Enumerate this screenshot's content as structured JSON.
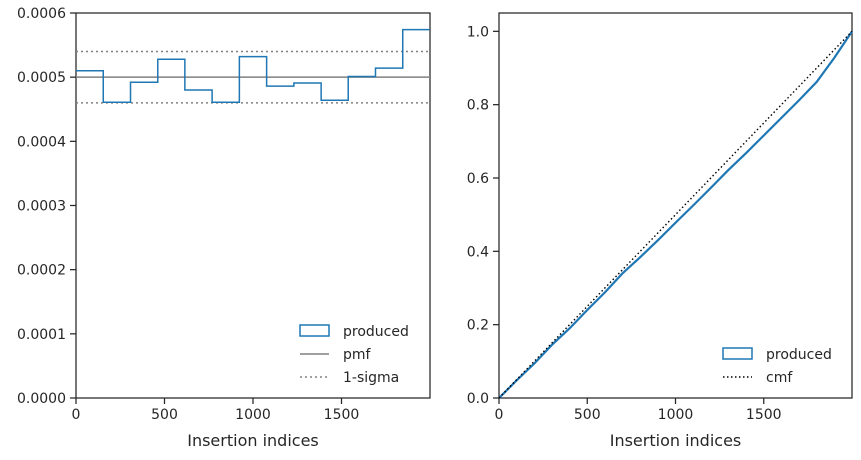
{
  "chart_data": [
    {
      "type": "line",
      "xlabel": "Insertion indices",
      "ylabel": "",
      "xlim": [
        0,
        2000
      ],
      "ylim": [
        0,
        0.0006
      ],
      "xticks": [
        0,
        500,
        1000,
        1500
      ],
      "xtick_labels": [
        "0",
        "500",
        "1000",
        "1500"
      ],
      "yticks": [
        0,
        0.0001,
        0.0002,
        0.0003,
        0.0004,
        0.0005,
        0.0006
      ],
      "ytick_labels": [
        "0.0000",
        "0.0001",
        "0.0002",
        "0.0003",
        "0.0004",
        "0.0005",
        "0.0006"
      ],
      "legend_position": "lower-right",
      "grid": false,
      "histogram": {
        "name": "produced",
        "color": "#1f77b4",
        "bin_edges": [
          0,
          154,
          308,
          462,
          615,
          769,
          923,
          1077,
          1231,
          1385,
          1538,
          1692,
          1846,
          2000
        ],
        "values": [
          0.00051,
          0.000461,
          0.000492,
          0.000528,
          0.00048,
          0.000461,
          0.000532,
          0.000486,
          0.000491,
          0.000464,
          0.000501,
          0.000514,
          0.000574
        ]
      },
      "pmf": {
        "name": "pmf",
        "color": "#808080",
        "value": 0.0005
      },
      "sigma": {
        "name": "1-sigma",
        "color": "#808080",
        "values": [
          0.00046,
          0.00054
        ]
      }
    },
    {
      "type": "line",
      "xlabel": "Insertion indices",
      "ylabel": "",
      "xlim": [
        0,
        2000
      ],
      "ylim": [
        0,
        1.05
      ],
      "xticks": [
        0,
        500,
        1000,
        1500
      ],
      "xtick_labels": [
        "0",
        "500",
        "1000",
        "1500"
      ],
      "yticks": [
        0,
        0.2,
        0.4,
        0.6,
        0.8,
        1.0
      ],
      "ytick_labels": [
        "0.0",
        "0.2",
        "0.4",
        "0.6",
        "0.8",
        "1.0"
      ],
      "legend_position": "lower-right",
      "grid": false,
      "produced": {
        "name": "produced",
        "color": "#1f77b4",
        "x": [
          0,
          100,
          200,
          300,
          400,
          500,
          600,
          700,
          800,
          900,
          1000,
          1100,
          1200,
          1300,
          1400,
          1500,
          1600,
          1700,
          1800,
          1900,
          2000
        ],
        "y": [
          0.0,
          0.048,
          0.094,
          0.145,
          0.19,
          0.24,
          0.288,
          0.34,
          0.384,
          0.43,
          0.478,
          0.525,
          0.573,
          0.622,
          0.668,
          0.716,
          0.764,
          0.812,
          0.862,
          0.928,
          1.0
        ]
      },
      "cmf": {
        "name": "cmf",
        "color": "#000000",
        "x": [
          0,
          2000
        ],
        "y": [
          0.0,
          1.0
        ]
      }
    }
  ]
}
